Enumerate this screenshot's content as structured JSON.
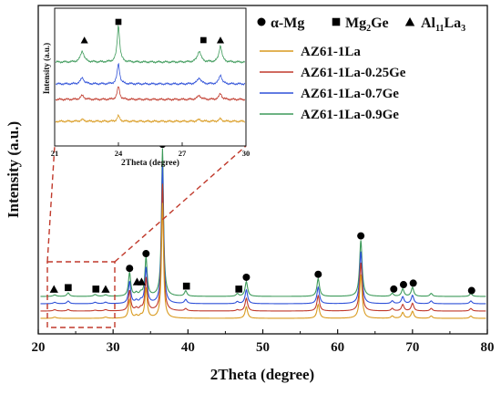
{
  "chart_data": {
    "type": "line",
    "xlabel": "2Theta (degree)",
    "ylabel": "Intensity (a.u.)",
    "xlim": [
      20,
      80
    ],
    "xticks": [
      20,
      30,
      40,
      50,
      60,
      70,
      80
    ],
    "grid": false,
    "legend_position": "top-right",
    "series": [
      {
        "name": "AZ61-1La",
        "color": "#d99a1e",
        "offset": 0
      },
      {
        "name": "AZ61-1La-0.25Ge",
        "color": "#c0392b",
        "offset": 1
      },
      {
        "name": "AZ61-1La-0.7Ge",
        "color": "#2e50d8",
        "offset": 2
      },
      {
        "name": "AZ61-1La-0.9Ge",
        "color": "#3d9a5a",
        "offset": 3
      }
    ],
    "peaks": [
      {
        "x": 32.2,
        "h": 0.16,
        "w": 0.18
      },
      {
        "x": 34.4,
        "h": 0.26,
        "w": 0.18
      },
      {
        "x": 36.6,
        "h": 1.0,
        "w": 0.16
      },
      {
        "x": 47.8,
        "h": 0.1,
        "w": 0.2
      },
      {
        "x": 57.4,
        "h": 0.12,
        "w": 0.2
      },
      {
        "x": 63.1,
        "h": 0.38,
        "w": 0.2
      },
      {
        "x": 67.3,
        "h": 0.02,
        "w": 0.2
      },
      {
        "x": 68.7,
        "h": 0.05,
        "w": 0.2
      },
      {
        "x": 70.0,
        "h": 0.06,
        "w": 0.2
      },
      {
        "x": 72.5,
        "h": 0.02,
        "w": 0.2
      },
      {
        "x": 77.8,
        "h": 0.02,
        "w": 0.2
      },
      {
        "x": 33.1,
        "h": 0.02,
        "w": 0.2
      },
      {
        "x": 33.7,
        "h": 0.02,
        "w": 0.2
      },
      {
        "x": 22.2,
        "h": 0.01,
        "w": 0.25
      },
      {
        "x": 29.0,
        "h": 0.01,
        "w": 0.25
      }
    ],
    "ge_peaks": [
      {
        "x": 24.0,
        "h": 0.02,
        "w": 0.2
      },
      {
        "x": 27.6,
        "h": 0.01,
        "w": 0.25
      },
      {
        "x": 39.7,
        "h": 0.03,
        "w": 0.2
      },
      {
        "x": 46.6,
        "h": 0.015,
        "w": 0.2
      }
    ],
    "markers": [
      {
        "type": "circle",
        "x": 32.2,
        "level": 0.19
      },
      {
        "type": "circle",
        "x": 34.4,
        "level": 0.29
      },
      {
        "type": "circle",
        "x": 36.6,
        "level": 1.03
      },
      {
        "type": "circle",
        "x": 47.8,
        "level": 0.13
      },
      {
        "type": "circle",
        "x": 57.4,
        "level": 0.15
      },
      {
        "type": "circle",
        "x": 63.1,
        "level": 0.41
      },
      {
        "type": "circle",
        "x": 67.5,
        "level": 0.05
      },
      {
        "type": "circle",
        "x": 68.8,
        "level": 0.08
      },
      {
        "type": "circle",
        "x": 70.1,
        "level": 0.09
      },
      {
        "type": "circle",
        "x": 77.9,
        "level": 0.04
      },
      {
        "type": "triangle",
        "x": 33.2,
        "level": 0.1
      },
      {
        "type": "triangle",
        "x": 33.8,
        "level": 0.1
      },
      {
        "type": "triangle",
        "x": 22.1,
        "level": 0.05
      },
      {
        "type": "triangle",
        "x": 29.0,
        "level": 0.05
      },
      {
        "type": "square",
        "x": 24.0,
        "level": 0.06
      },
      {
        "type": "square",
        "x": 27.7,
        "level": 0.05
      },
      {
        "type": "square",
        "x": 39.8,
        "level": 0.07
      },
      {
        "type": "square",
        "x": 46.8,
        "level": 0.05
      }
    ],
    "phase_legend": [
      {
        "symbol": "circle",
        "label_main": "α-Mg"
      },
      {
        "symbol": "square",
        "label_main": "Mg",
        "sub1": "2",
        "tail": "Ge"
      },
      {
        "symbol": "triangle",
        "label_main": "Al",
        "sub1": "11",
        "tail": "La",
        "sub2": "3"
      }
    ],
    "inset": {
      "xlabel": "2Theta (degree)",
      "ylabel": "Intensity (a.u.)",
      "xlim": [
        21,
        30
      ],
      "xticks": [
        21,
        24,
        27,
        30
      ],
      "peaks": [
        {
          "x": 22.3,
          "h": 0.3,
          "w": 0.1
        },
        {
          "x": 24.0,
          "h": 1.0,
          "w": 0.07
        },
        {
          "x": 27.8,
          "h": 0.3,
          "w": 0.1
        },
        {
          "x": 28.8,
          "h": 0.45,
          "w": 0.08
        }
      ],
      "series_scales": [
        0.15,
        0.35,
        0.55,
        1.0
      ],
      "markers": [
        {
          "type": "triangle",
          "x": 22.4
        },
        {
          "type": "square",
          "x": 24.0
        },
        {
          "type": "square",
          "x": 28.0
        },
        {
          "type": "triangle",
          "x": 28.8
        }
      ]
    }
  }
}
